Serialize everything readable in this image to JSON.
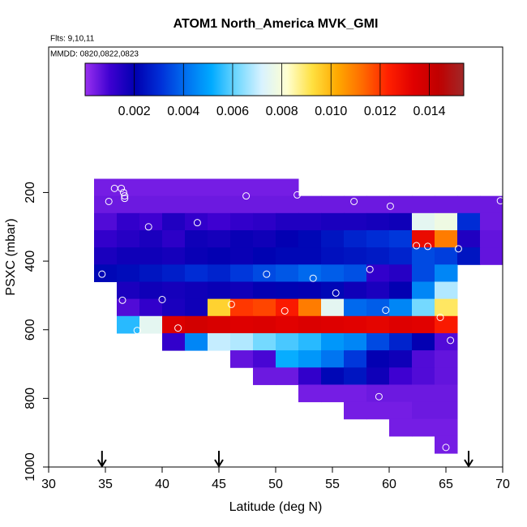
{
  "chart_data": {
    "type": "heatmap",
    "title": "ATOM1 North_America MVK_GMI",
    "subtitle": "Flts: 9,10,11",
    "annotation": "MMDD: 0820,0822,0823",
    "x_label": "Latitude (deg N)",
    "y_label": "PSXC (mbar)",
    "xlim": [
      30,
      70
    ],
    "xticks": [
      30,
      35,
      40,
      45,
      50,
      55,
      60,
      65,
      70
    ],
    "ylim": [
      1000,
      -224
    ],
    "yticks": [
      200,
      400,
      600,
      800,
      1000
    ],
    "x_bins": [
      34,
      36,
      38,
      40,
      42,
      44,
      46,
      48,
      50,
      52,
      54,
      56,
      58,
      60,
      62,
      64,
      66,
      68,
      70
    ],
    "y_bins": [
      160,
      210,
      260,
      310,
      360,
      410,
      460,
      510,
      560,
      610,
      660,
      710,
      760,
      810,
      860,
      910,
      960
    ],
    "z": [
      [
        0.0004,
        0.0004,
        0.0004,
        0.0004,
        0.0004,
        0.0004,
        0.0004,
        0.0004,
        0.0004,
        null,
        null,
        null,
        null,
        null,
        null,
        null,
        null,
        null
      ],
      [
        0.0005,
        0.0005,
        0.0005,
        0.0005,
        0.0005,
        0.0005,
        0.0005,
        0.0005,
        0.0005,
        0.0005,
        0.0005,
        0.0005,
        0.0005,
        0.0005,
        0.0005,
        0.0005,
        0.0005,
        0.0005
      ],
      [
        0.0008,
        0.0012,
        0.001,
        0.0015,
        0.0012,
        0.001,
        0.0012,
        0.0013,
        0.0015,
        0.0015,
        0.0016,
        0.0016,
        0.0017,
        0.0018,
        0.0075,
        0.0078,
        0.003,
        0.0005
      ],
      [
        0.0012,
        0.0014,
        0.0016,
        0.0013,
        0.0018,
        0.0017,
        0.0019,
        0.0018,
        0.002,
        0.0022,
        0.0025,
        0.0028,
        0.003,
        0.0032,
        0.013,
        0.011,
        0.0015,
        0.0006
      ],
      [
        0.0016,
        0.0018,
        0.0018,
        0.0017,
        0.0019,
        0.002,
        0.0019,
        0.0021,
        0.0022,
        0.0022,
        0.0024,
        0.0025,
        0.0026,
        0.0028,
        0.0035,
        0.0033,
        0.0025,
        0.0006
      ],
      [
        0.0022,
        0.0023,
        0.0025,
        0.0027,
        0.003,
        0.0028,
        0.0032,
        0.0035,
        0.0037,
        0.004,
        0.0038,
        0.0036,
        0.0012,
        0.0014,
        0.0035,
        0.0045,
        null,
        null
      ],
      [
        null,
        0.0016,
        0.0018,
        0.0017,
        0.0018,
        0.0019,
        0.0018,
        0.002,
        0.0021,
        0.002,
        0.0022,
        0.0018,
        0.0016,
        0.002,
        0.0045,
        0.0068,
        null,
        null
      ],
      [
        null,
        0.0008,
        0.0012,
        0.0016,
        0.0018,
        0.0095,
        0.012,
        0.0118,
        0.0125,
        0.011,
        0.0075,
        0.004,
        0.0038,
        0.0045,
        0.0062,
        0.009,
        null,
        null
      ],
      [
        null,
        0.0055,
        0.0075,
        0.0135,
        0.0138,
        0.0136,
        0.0134,
        0.0135,
        0.0133,
        0.0135,
        0.0134,
        0.0133,
        0.0132,
        0.0134,
        0.0133,
        0.0125,
        null,
        null
      ],
      [
        null,
        null,
        null,
        0.0012,
        0.0045,
        0.007,
        0.0068,
        0.0062,
        0.0058,
        0.0055,
        0.0048,
        0.0045,
        0.0035,
        0.0028,
        0.002,
        0.0008,
        null,
        null
      ],
      [
        null,
        null,
        null,
        null,
        null,
        null,
        0.0006,
        0.0009,
        0.0052,
        0.0048,
        0.0042,
        0.0032,
        0.002,
        0.0018,
        0.0008,
        0.0006,
        null,
        null
      ],
      [
        null,
        null,
        null,
        null,
        null,
        null,
        null,
        0.0005,
        0.0005,
        0.0012,
        0.0022,
        0.0025,
        0.0018,
        0.001,
        0.0008,
        0.0006,
        null,
        null
      ],
      [
        null,
        null,
        null,
        null,
        null,
        null,
        null,
        null,
        null,
        0.0004,
        0.0004,
        0.0004,
        0.0005,
        0.0005,
        0.0005,
        0.0005,
        null,
        null
      ],
      [
        null,
        null,
        null,
        null,
        null,
        null,
        null,
        null,
        null,
        null,
        null,
        0.0004,
        0.0004,
        0.0004,
        0.0005,
        0.0005,
        null,
        null
      ],
      [
        null,
        null,
        null,
        null,
        null,
        null,
        null,
        null,
        null,
        null,
        null,
        null,
        null,
        0.0004,
        0.0004,
        0.0004,
        null,
        null
      ],
      [
        null,
        null,
        null,
        null,
        null,
        null,
        null,
        null,
        null,
        null,
        null,
        null,
        null,
        null,
        null,
        0.0004,
        null,
        null
      ]
    ],
    "clim": [
      0,
      0.0154
    ],
    "colorbar_ticks": [
      0.002,
      0.004,
      0.006,
      0.008,
      {
        "value": 0.01,
        "label": "0.010"
      },
      0.012,
      0.014
    ],
    "colormap": [
      "#9a30f0",
      "#3c00d0",
      "#0000b0",
      "#0030d8",
      "#0070f0",
      "#00aaff",
      "#70d8ff",
      "#d8f2ff",
      "#ffffd0",
      "#ffe040",
      "#ffa800",
      "#ff6a00",
      "#ff2000",
      "#e00000",
      "#c00000",
      "#a02828"
    ],
    "points": {
      "x": [
        35.8,
        36.4,
        36.6,
        36.7,
        36.7,
        35.3,
        47.4,
        51.9,
        56.9,
        60.1,
        69.8,
        43.1,
        38.8,
        62.4,
        63.4,
        66.1,
        58.3,
        34.7,
        49.2,
        53.3,
        55.3,
        36.5,
        40,
        46.1,
        50.8,
        59.7,
        64.5,
        37.8,
        41.4,
        65.4,
        59.1,
        65
      ],
      "y": [
        188,
        188,
        200,
        210,
        217,
        226,
        210,
        207,
        226,
        240,
        224,
        288,
        300,
        355,
        357,
        364,
        424,
        438,
        438,
        450,
        493,
        514,
        512,
        526,
        545,
        543,
        564,
        602,
        595,
        631,
        795,
        943
      ]
    },
    "arrows": [
      34.7,
      45,
      67
    ]
  }
}
